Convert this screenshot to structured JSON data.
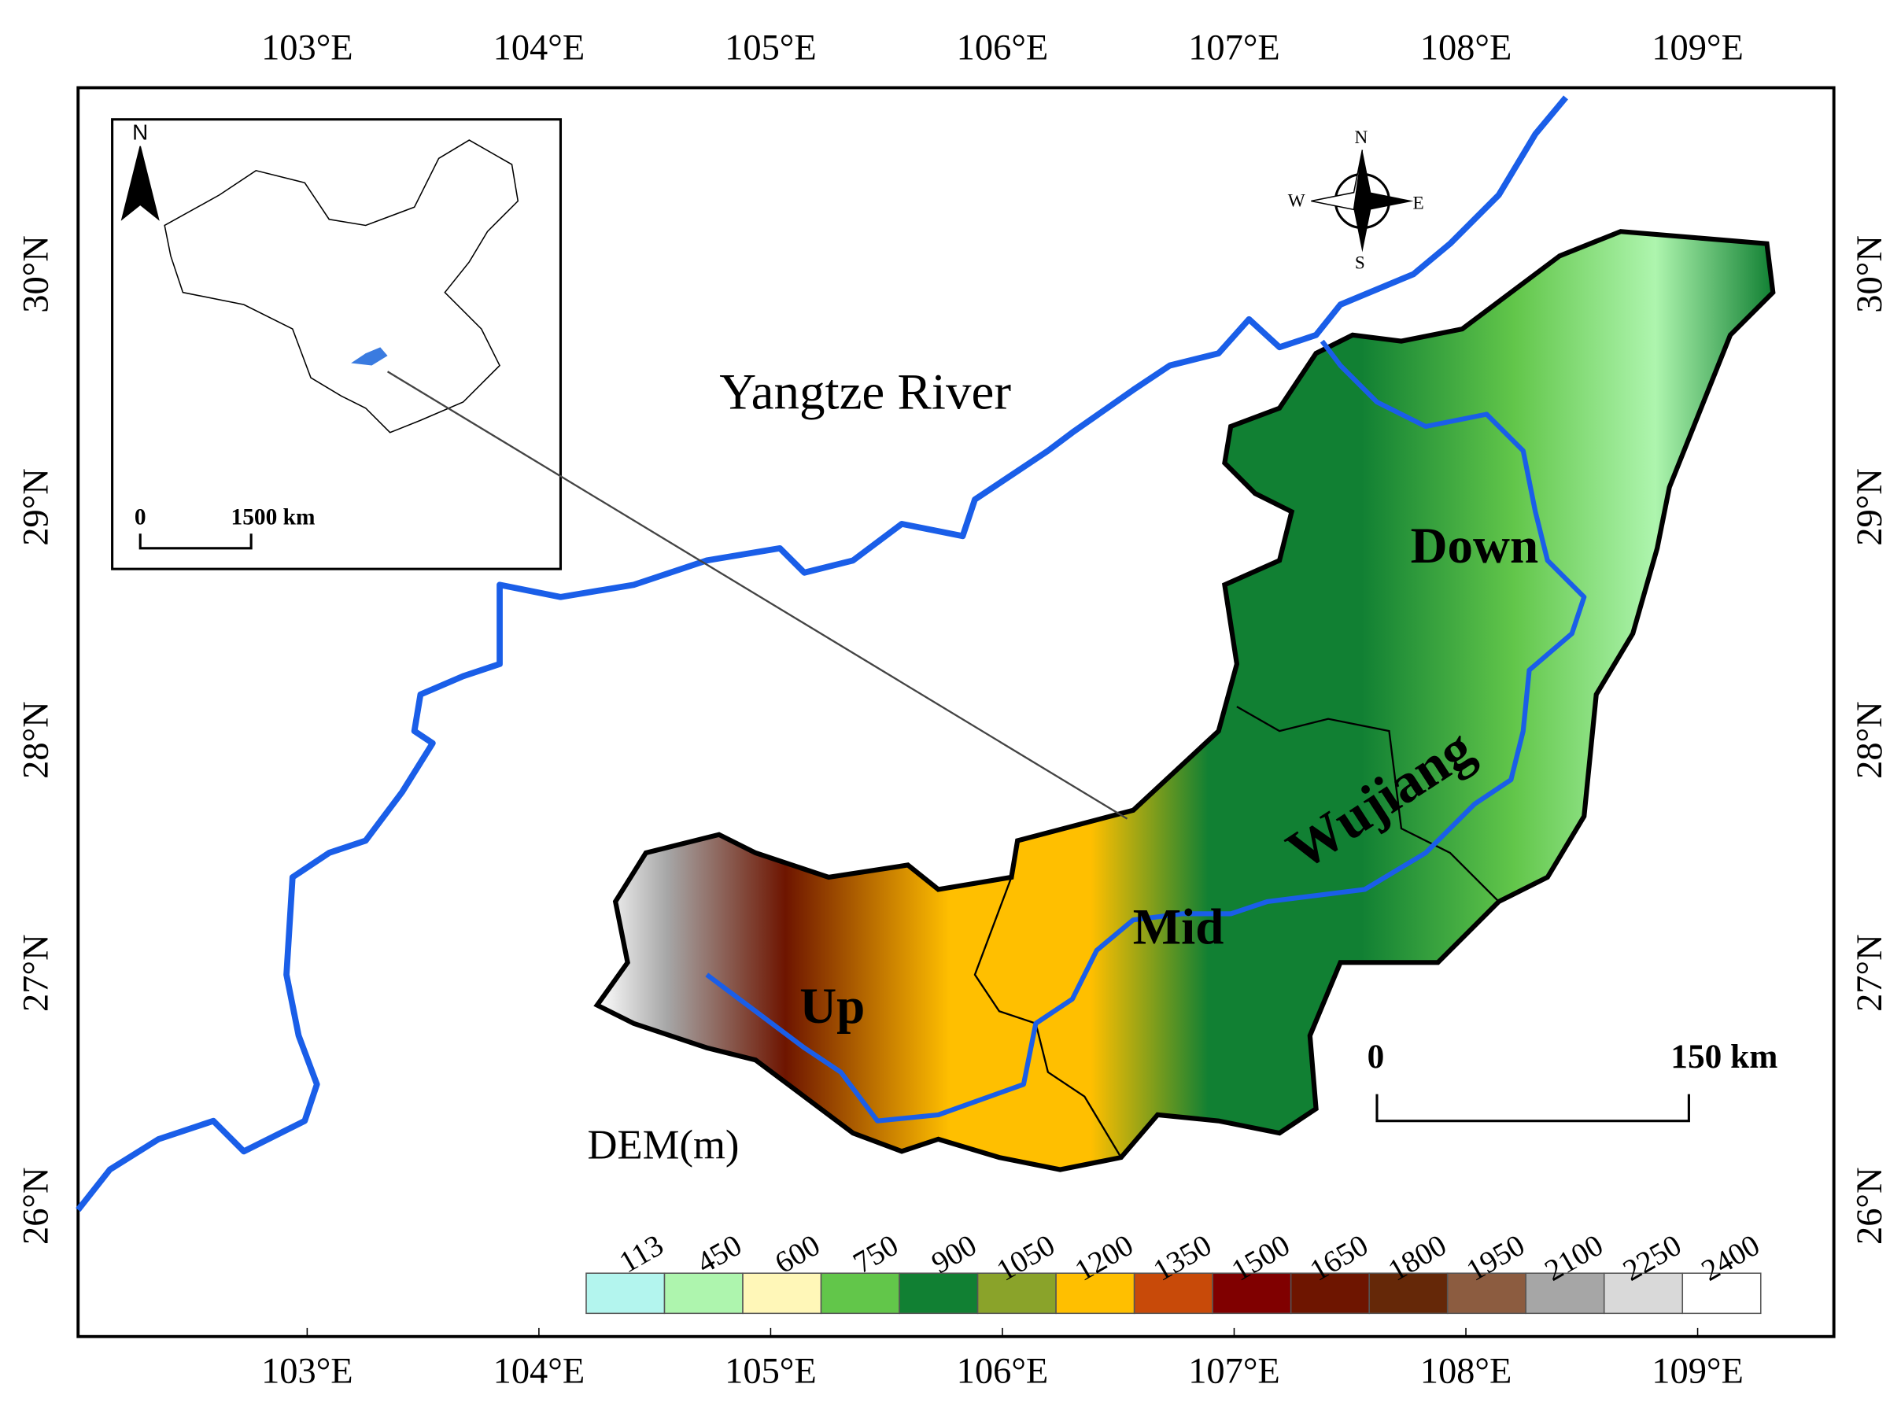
{
  "map": {
    "lon_labels": [
      "103°E",
      "104°E",
      "105°E",
      "106°E",
      "107°E",
      "108°E",
      "109°E"
    ],
    "lat_labels": [
      "30°N",
      "29°N",
      "28°N",
      "27°N",
      "26°N"
    ],
    "labels": {
      "river": "Yangtze River",
      "up": "Up",
      "mid": "Mid",
      "down": "Down",
      "basin": "Wujiang"
    },
    "compass": {
      "n": "N",
      "s": "S",
      "w": "W",
      "e": "E"
    },
    "inset": {
      "north": "N",
      "scale_start": "0",
      "scale_end": "1500 km"
    },
    "scale": {
      "start": "0",
      "end": "150 km"
    },
    "legend": {
      "title": "DEM(m)",
      "breaks": [
        "113",
        "450",
        "600",
        "750",
        "900",
        "1050",
        "1200",
        "1350",
        "1500",
        "1650",
        "1800",
        "1950",
        "2100",
        "2250",
        "2400"
      ],
      "colors": [
        "#b3f5ee",
        "#aef5ae",
        "#fff7b8",
        "#62c64a",
        "#118033",
        "#8aa32a",
        "#ffbf00",
        "#c84a09",
        "#800000",
        "#6e1500",
        "#652808",
        "#8c5c40",
        "#a6a6a6",
        "#d9d9d9",
        "#ffffff"
      ]
    }
  }
}
